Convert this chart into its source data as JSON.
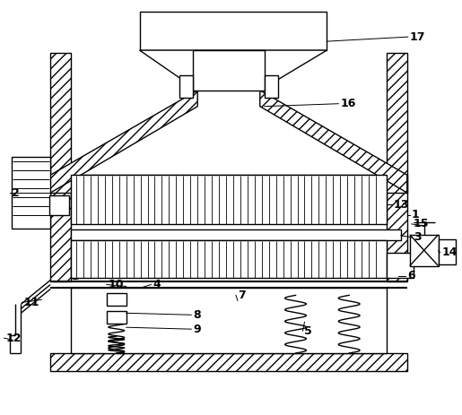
{
  "background": "#ffffff",
  "line_color": "#000000",
  "figsize": [
    5.15,
    4.63
  ],
  "dpi": 100
}
